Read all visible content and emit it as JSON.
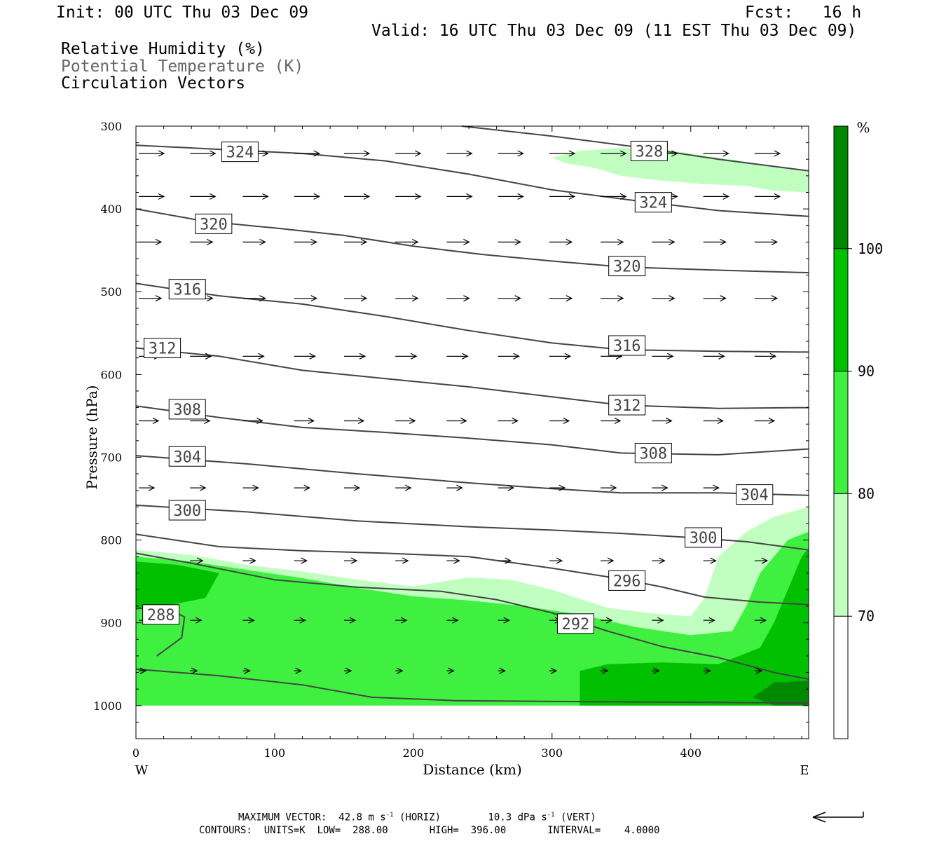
{
  "header": {
    "init": "Init: 00 UTC Thu 03 Dec 09",
    "fcst": "Fcst:   16 h",
    "valid": "Valid: 16 UTC Thu 03 Dec 09 (11 EST Thu 03 Dec 09)",
    "field1": "Relative Humidity (%)",
    "field2": "Potential Temperature (K)",
    "field3": "Circulation Vectors"
  },
  "footer": {
    "max_vector_label": "MAXIMUM VECTOR:",
    "max_vector_horiz": "42.8 m s",
    "horiz_sup": "-1",
    "horiz_tag": "(HORIZ)",
    "max_vector_vert": "10.3 dPa s",
    "vert_sup": "-1",
    "vert_tag": "(VERT)",
    "contours": "CONTOURS:  UNITS=K  LOW=  288.00       HIGH=  396.00       INTERVAL=    4.0000"
  },
  "chart_data": {
    "type": "cross-section",
    "xlabel": "Distance (km)",
    "ylabel": "Pressure (hPa)",
    "x_end_labels": [
      "W",
      "E"
    ],
    "xlim": [
      0,
      485
    ],
    "ylim": [
      1040,
      300
    ],
    "x_ticks": [
      0,
      100,
      200,
      300,
      400
    ],
    "y_ticks": [
      300,
      400,
      500,
      600,
      700,
      800,
      900,
      1000
    ],
    "colorbar": {
      "unit_label": "%",
      "levels": [
        70,
        80,
        90,
        100
      ],
      "colors": [
        "#ffffff",
        "#c0ffc0",
        "#40f040",
        "#00c000",
        "#008800"
      ]
    },
    "rh_shading": [
      {
        "level": 70,
        "color": "#c0ffc0",
        "points": [
          [
            300,
            338
          ],
          [
            320,
            330
          ],
          [
            350,
            326
          ],
          [
            380,
            328
          ],
          [
            420,
            338
          ],
          [
            460,
            348
          ],
          [
            485,
            355
          ],
          [
            485,
            380
          ],
          [
            460,
            378
          ],
          [
            440,
            372
          ],
          [
            410,
            370
          ],
          [
            380,
            366
          ],
          [
            350,
            360
          ],
          [
            330,
            350
          ],
          [
            310,
            345
          ]
        ]
      },
      {
        "level": 70,
        "color": "#c0ffc0",
        "points": [
          [
            0,
            812
          ],
          [
            40,
            818
          ],
          [
            80,
            830
          ],
          [
            120,
            838
          ],
          [
            160,
            848
          ],
          [
            200,
            856
          ],
          [
            240,
            845
          ],
          [
            270,
            848
          ],
          [
            300,
            860
          ],
          [
            340,
            882
          ],
          [
            380,
            890
          ],
          [
            400,
            892
          ],
          [
            410,
            870
          ],
          [
            420,
            820
          ],
          [
            440,
            790
          ],
          [
            460,
            772
          ],
          [
            485,
            760
          ],
          [
            485,
            1000
          ],
          [
            0,
            1000
          ]
        ]
      },
      {
        "level": 80,
        "color": "#40f040",
        "points": [
          [
            0,
            820
          ],
          [
            40,
            826
          ],
          [
            80,
            836
          ],
          [
            120,
            846
          ],
          [
            160,
            858
          ],
          [
            200,
            868
          ],
          [
            240,
            873
          ],
          [
            280,
            880
          ],
          [
            320,
            890
          ],
          [
            360,
            905
          ],
          [
            400,
            915
          ],
          [
            430,
            910
          ],
          [
            440,
            880
          ],
          [
            450,
            840
          ],
          [
            470,
            800
          ],
          [
            485,
            790
          ],
          [
            485,
            1000
          ],
          [
            0,
            1000
          ]
        ]
      },
      {
        "level": 90,
        "color": "#00c000",
        "points": [
          [
            0,
            826
          ],
          [
            30,
            830
          ],
          [
            60,
            840
          ],
          [
            50,
            870
          ],
          [
            20,
            880
          ],
          [
            0,
            884
          ]
        ]
      },
      {
        "level": 90,
        "color": "#00c000",
        "points": [
          [
            320,
            958
          ],
          [
            340,
            950
          ],
          [
            380,
            948
          ],
          [
            420,
            950
          ],
          [
            450,
            930
          ],
          [
            460,
            900
          ],
          [
            470,
            860
          ],
          [
            480,
            820
          ],
          [
            485,
            810
          ],
          [
            485,
            1000
          ],
          [
            320,
            1000
          ]
        ]
      },
      {
        "level": 100,
        "color": "#008800",
        "points": [
          [
            445,
            990
          ],
          [
            460,
            972
          ],
          [
            485,
            970
          ],
          [
            485,
            1000
          ],
          [
            460,
            1000
          ]
        ]
      }
    ],
    "theta_contours": [
      {
        "label": "328",
        "label_at": [
          370,
          330
        ],
        "points": [
          [
            235,
            300
          ],
          [
            300,
            312
          ],
          [
            360,
            325
          ],
          [
            420,
            340
          ],
          [
            485,
            354
          ]
        ]
      },
      {
        "label": "324",
        "label_at": [
          75,
          331
        ],
        "points": [
          [
            0,
            323
          ],
          [
            60,
            328
          ],
          [
            120,
            333
          ],
          [
            180,
            342
          ],
          [
            240,
            358
          ],
          [
            300,
            377
          ],
          [
            360,
            390
          ],
          [
            420,
            402
          ],
          [
            485,
            409
          ]
        ]
      },
      {
        "label": "324",
        "label_at": [
          373,
          392
        ],
        "points": []
      },
      {
        "label": "320",
        "label_at": [
          56,
          418
        ],
        "points": [
          [
            0,
            400
          ],
          [
            50,
            415
          ],
          [
            100,
            423
          ],
          [
            150,
            432
          ],
          [
            200,
            445
          ],
          [
            250,
            455
          ],
          [
            300,
            463
          ],
          [
            350,
            470
          ],
          [
            420,
            474
          ],
          [
            485,
            477
          ]
        ]
      },
      {
        "label": "320",
        "label_at": [
          354,
          469
        ],
        "points": []
      },
      {
        "label": "316",
        "label_at": [
          37,
          497
        ],
        "points": [
          [
            0,
            490
          ],
          [
            60,
            505
          ],
          [
            120,
            515
          ],
          [
            180,
            530
          ],
          [
            240,
            547
          ],
          [
            300,
            562
          ],
          [
            350,
            570
          ],
          [
            420,
            572
          ],
          [
            485,
            573
          ]
        ]
      },
      {
        "label": "316",
        "label_at": [
          354,
          565
        ],
        "points": []
      },
      {
        "label": "312",
        "label_at": [
          19,
          568
        ],
        "points": [
          [
            0,
            568
          ],
          [
            60,
            578
          ],
          [
            120,
            595
          ],
          [
            180,
            605
          ],
          [
            240,
            615
          ],
          [
            300,
            627
          ],
          [
            350,
            637
          ],
          [
            420,
            641
          ],
          [
            485,
            640
          ]
        ]
      },
      {
        "label": "312",
        "label_at": [
          354,
          637
        ],
        "points": []
      },
      {
        "label": "308",
        "label_at": [
          37,
          642
        ],
        "points": [
          [
            0,
            638
          ],
          [
            60,
            652
          ],
          [
            120,
            664
          ],
          [
            180,
            670
          ],
          [
            240,
            677
          ],
          [
            300,
            685
          ],
          [
            350,
            695
          ],
          [
            420,
            697
          ],
          [
            485,
            690
          ]
        ]
      },
      {
        "label": "308",
        "label_at": [
          373,
          695
        ],
        "points": []
      },
      {
        "label": "304",
        "label_at": [
          37,
          699
        ],
        "points": [
          [
            0,
            698
          ],
          [
            80,
            708
          ],
          [
            160,
            720
          ],
          [
            240,
            731
          ],
          [
            300,
            738
          ],
          [
            350,
            743
          ],
          [
            420,
            743
          ],
          [
            485,
            746
          ]
        ]
      },
      {
        "label": "304",
        "label_at": [
          446,
          745
        ],
        "points": []
      },
      {
        "label": "300",
        "label_at": [
          37,
          764
        ],
        "points": [
          [
            0,
            758
          ],
          [
            80,
            766
          ],
          [
            160,
            777
          ],
          [
            240,
            784
          ],
          [
            300,
            788
          ],
          [
            350,
            792
          ],
          [
            400,
            797
          ],
          [
            440,
            802
          ],
          [
            485,
            812
          ]
        ]
      },
      {
        "label": "300",
        "label_at": [
          409,
          797
        ],
        "points": []
      },
      {
        "label": "296",
        "label_at": [
          354,
          849
        ],
        "points": [
          [
            0,
            793
          ],
          [
            60,
            808
          ],
          [
            120,
            813
          ],
          [
            180,
            816
          ],
          [
            240,
            820
          ],
          [
            300,
            834
          ],
          [
            350,
            847
          ],
          [
            380,
            857
          ],
          [
            410,
            869
          ],
          [
            450,
            875
          ],
          [
            485,
            878
          ]
        ]
      },
      {
        "label": "292",
        "label_at": [
          317,
          901
        ],
        "points": [
          [
            0,
            816
          ],
          [
            40,
            828
          ],
          [
            100,
            848
          ],
          [
            160,
            857
          ],
          [
            220,
            862
          ],
          [
            260,
            872
          ],
          [
            300,
            888
          ],
          [
            340,
            910
          ],
          [
            380,
            929
          ],
          [
            420,
            942
          ],
          [
            460,
            960
          ],
          [
            485,
            968
          ]
        ]
      },
      {
        "label": "288",
        "label_at": [
          18,
          890
        ],
        "points": [
          [
            0,
            883
          ],
          [
            20,
            880
          ],
          [
            35,
            893
          ],
          [
            33,
            918
          ],
          [
            20,
            934
          ],
          [
            15,
            940
          ]
        ]
      },
      {
        "label": "",
        "label_at": null,
        "points": [
          [
            0,
            956
          ],
          [
            60,
            964
          ],
          [
            120,
            975
          ],
          [
            170,
            990
          ],
          [
            230,
            994
          ],
          [
            300,
            995
          ],
          [
            400,
            996
          ],
          [
            485,
            997
          ]
        ]
      }
    ],
    "vector_rows": [
      {
        "p": 333,
        "xs": [
          0,
          37,
          75,
          112,
          148,
          185,
          222,
          259,
          296,
          333,
          370,
          407,
          444,
          481
        ],
        "len": 36
      },
      {
        "p": 385,
        "xs": [
          0,
          37,
          75,
          112,
          148,
          185,
          222,
          259,
          296,
          333,
          370,
          407,
          444,
          481
        ],
        "len": 36
      },
      {
        "p": 440,
        "xs": [
          0,
          37,
          75,
          112,
          148,
          185,
          222,
          259,
          296,
          333,
          370,
          407,
          444,
          481
        ],
        "len": 32
      },
      {
        "p": 508,
        "xs": [
          0,
          37,
          75,
          112,
          148,
          185,
          222,
          259,
          296,
          333,
          370,
          407,
          444,
          481
        ],
        "len": 32
      },
      {
        "p": 578,
        "xs": [
          0,
          37,
          75,
          112,
          148,
          185,
          222,
          259,
          296,
          333,
          370,
          407,
          444,
          481
        ],
        "len": 30
      },
      {
        "p": 656,
        "xs": [
          0,
          37,
          75,
          112,
          148,
          185,
          222,
          259,
          296,
          333,
          370,
          407,
          444,
          481
        ],
        "len": 28
      },
      {
        "p": 737,
        "xs": [
          0,
          37,
          75,
          112,
          148,
          185,
          222,
          259,
          296,
          333,
          370,
          407,
          444,
          481
        ],
        "len": 22
      },
      {
        "p": 825,
        "xs": [
          37,
          75,
          112,
          148,
          185,
          222,
          259,
          296,
          333,
          370,
          407,
          444,
          481
        ],
        "len": 18
      },
      {
        "p": 897,
        "xs": [
          0,
          37,
          75,
          112,
          148,
          185,
          222,
          259,
          296,
          333,
          370,
          407,
          444,
          481
        ],
        "len": 16
      },
      {
        "p": 958,
        "xs": [
          0,
          37,
          75,
          112,
          148,
          185,
          222,
          259,
          296,
          333,
          370,
          407,
          444,
          481
        ],
        "len": 10
      }
    ]
  }
}
